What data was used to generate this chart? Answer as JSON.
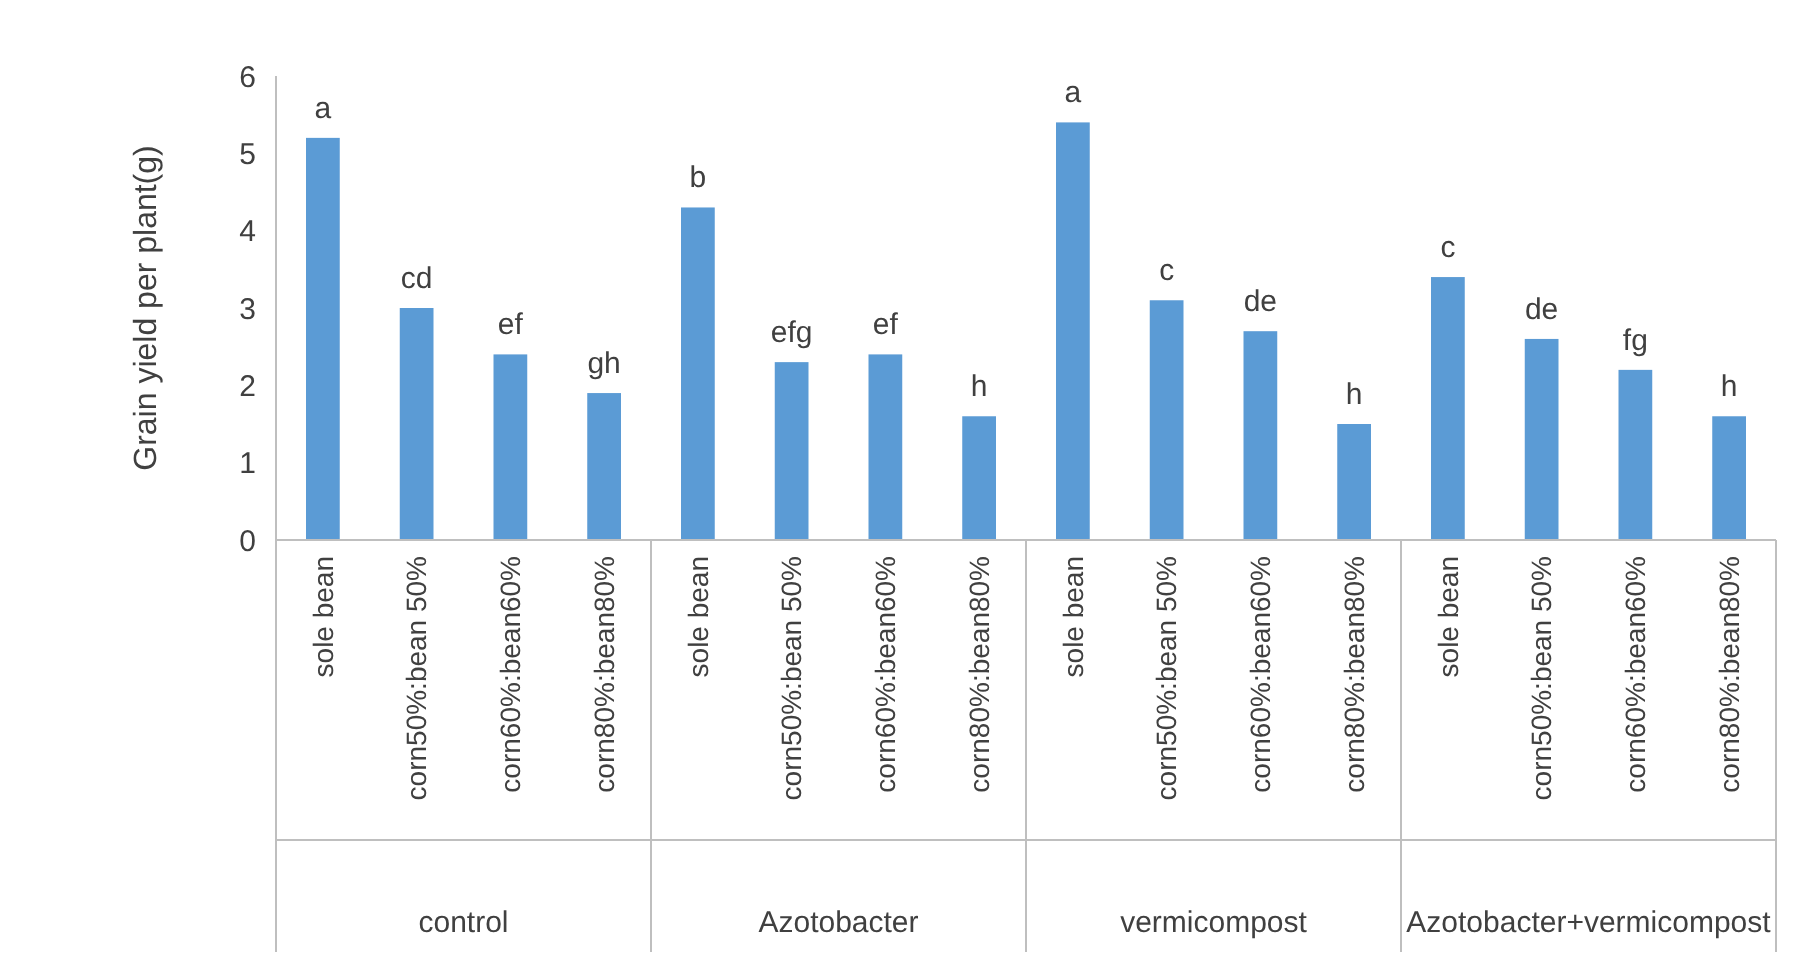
{
  "chart_data": {
    "type": "bar",
    "ylabel": "Grain yield per plant(g)",
    "categories": [
      "sole bean",
      "corn50%:bean 50%",
      "corn60%:bean60%",
      "corn80%:bean80%",
      "sole bean",
      "corn50%:bean 50%",
      "corn60%:bean60%",
      "corn80%:bean80%",
      "sole bean",
      "corn50%:bean 50%",
      "corn60%:bean60%",
      "corn80%:bean80%",
      "sole bean",
      "corn50%:bean 50%",
      "corn60%:bean60%",
      "corn80%:bean80%"
    ],
    "values": [
      5.2,
      3.0,
      2.4,
      1.9,
      4.3,
      2.3,
      2.4,
      1.6,
      5.4,
      3.1,
      2.7,
      1.5,
      3.4,
      2.6,
      2.2,
      1.6
    ],
    "value_labels": [
      "a",
      "cd",
      "ef",
      "gh",
      "b",
      "efg",
      "ef",
      "h",
      "a",
      "c",
      "de",
      "h",
      "c",
      "de",
      "fg",
      "h"
    ],
    "annotations": [
      "control",
      "Azotobacter",
      "vermicompost",
      "Azotobacter+vermicompost"
    ],
    "color": "#5b9bd5",
    "ylim": [
      0,
      6
    ],
    "yticks": [
      0,
      1,
      2,
      3,
      4,
      5,
      6
    ],
    "grid": false
  }
}
